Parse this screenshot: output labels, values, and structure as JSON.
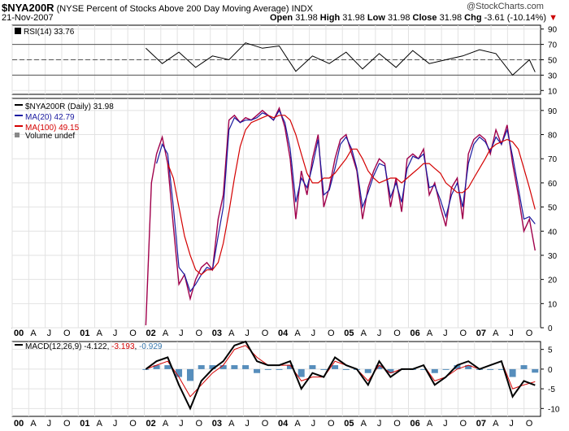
{
  "header": {
    "symbol": "$NYA200R",
    "description": "(NYSE Percent of Stocks Above 200 Day Moving Average)",
    "exchange": "INDX",
    "date": "21-Nov-2007",
    "open_label": "Open",
    "open": "31.98",
    "high_label": "High",
    "high": "31.98",
    "low_label": "Low",
    "low": "31.98",
    "close_label": "Close",
    "close": "31.98",
    "chg_label": "Chg",
    "chg": "-3.61 (-10.14%)",
    "chg_arrow": "▼",
    "logo": "@StockCharts.com"
  },
  "colors": {
    "price": "#a0004b",
    "ma20": "#1a1aa0",
    "ma100": "#d40000",
    "rsi": "#000000",
    "macd": "#000000",
    "signal": "#d40000",
    "hist": "#3a7ab0"
  },
  "legends": {
    "rsi": "RSI(14) 33.76",
    "price": "$NYA200R (Daily) 31.98",
    "ma20": "MA(20) 42.79",
    "ma100": "MA(100) 49.15",
    "volume": "Volume undef",
    "macd_label": "MACD(12,26,9)",
    "macd_val": "-4.122",
    "signal_val": "-3.193",
    "hist_val": "-0.929"
  },
  "x_axis_labels": [
    "00",
    "A",
    "J",
    "O",
    "01",
    "A",
    "J",
    "O",
    "02",
    "A",
    "J",
    "O",
    "03",
    "A",
    "J",
    "O",
    "04",
    "A",
    "J",
    "O",
    "05",
    "A",
    "J",
    "O",
    "06",
    "A",
    "J",
    "O",
    "07",
    "A",
    "J",
    "O"
  ],
  "chart_data": [
    {
      "type": "line",
      "name": "RSI",
      "yticks": [
        10,
        30,
        50,
        70,
        90
      ],
      "ylim": [
        5,
        95
      ],
      "reference_lines": [
        30,
        50,
        70
      ],
      "x": [
        "2002-01",
        "2002-04",
        "2002-07",
        "2002-10",
        "2003-01",
        "2003-04",
        "2003-07",
        "2003-10",
        "2004-01",
        "2004-04",
        "2004-07",
        "2004-10",
        "2005-01",
        "2005-04",
        "2005-07",
        "2005-10",
        "2006-01",
        "2006-04",
        "2006-07",
        "2006-10",
        "2007-01",
        "2007-04",
        "2007-07",
        "2007-10",
        "2007-11"
      ],
      "values": [
        65,
        45,
        60,
        40,
        55,
        50,
        72,
        65,
        68,
        35,
        55,
        45,
        60,
        38,
        58,
        40,
        62,
        45,
        50,
        55,
        63,
        58,
        30,
        50,
        34
      ]
    },
    {
      "type": "line",
      "name": "Price",
      "yticks": [
        0,
        10,
        20,
        30,
        40,
        50,
        60,
        70,
        80,
        90
      ],
      "ylim": [
        0,
        95
      ],
      "x": [
        "2002-01",
        "2002-02",
        "2002-03",
        "2002-04",
        "2002-05",
        "2002-06",
        "2002-07",
        "2002-08",
        "2002-09",
        "2002-10",
        "2002-11",
        "2002-12",
        "2003-01",
        "2003-02",
        "2003-03",
        "2003-04",
        "2003-05",
        "2003-06",
        "2003-07",
        "2003-08",
        "2003-09",
        "2003-10",
        "2003-11",
        "2003-12",
        "2004-01",
        "2004-02",
        "2004-03",
        "2004-04",
        "2004-05",
        "2004-06",
        "2004-07",
        "2004-08",
        "2004-09",
        "2004-10",
        "2004-11",
        "2004-12",
        "2005-01",
        "2005-02",
        "2005-03",
        "2005-04",
        "2005-05",
        "2005-06",
        "2005-07",
        "2005-08",
        "2005-09",
        "2005-10",
        "2005-11",
        "2005-12",
        "2006-01",
        "2006-02",
        "2006-03",
        "2006-04",
        "2006-05",
        "2006-06",
        "2006-07",
        "2006-08",
        "2006-09",
        "2006-10",
        "2006-11",
        "2006-12",
        "2007-01",
        "2007-02",
        "2007-03",
        "2007-04",
        "2007-05",
        "2007-06",
        "2007-07",
        "2007-08",
        "2007-09",
        "2007-10",
        "2007-11"
      ],
      "series": [
        {
          "name": "$NYA200R",
          "values": [
            1,
            60,
            72,
            79,
            68,
            42,
            18,
            22,
            12,
            20,
            25,
            27,
            24,
            45,
            55,
            86,
            88,
            85,
            87,
            86,
            88,
            90,
            88,
            86,
            91,
            83,
            70,
            45,
            65,
            55,
            70,
            80,
            50,
            58,
            70,
            78,
            80,
            72,
            65,
            45,
            58,
            65,
            70,
            68,
            50,
            62,
            48,
            70,
            72,
            70,
            74,
            55,
            60,
            50,
            42,
            58,
            62,
            45,
            72,
            78,
            80,
            78,
            72,
            82,
            76,
            84,
            68,
            55,
            40,
            45,
            32
          ]
        },
        {
          "name": "MA(20)",
          "values": [
            null,
            null,
            68,
            76,
            72,
            50,
            25,
            22,
            15,
            18,
            22,
            25,
            24,
            38,
            50,
            82,
            87,
            85,
            86,
            86,
            87,
            89,
            88,
            86,
            90,
            85,
            74,
            52,
            62,
            58,
            67,
            78,
            55,
            57,
            66,
            76,
            79,
            74,
            66,
            50,
            56,
            63,
            68,
            67,
            54,
            60,
            52,
            66,
            71,
            70,
            72,
            58,
            59,
            53,
            46,
            55,
            60,
            50,
            68,
            76,
            79,
            77,
            73,
            79,
            76,
            82,
            71,
            58,
            45,
            46,
            43
          ]
        },
        {
          "name": "MA(100)",
          "values": [
            null,
            null,
            null,
            null,
            68,
            62,
            50,
            38,
            30,
            24,
            22,
            24,
            24,
            27,
            35,
            48,
            62,
            75,
            82,
            85,
            86,
            87,
            88,
            87,
            88,
            88,
            86,
            80,
            72,
            64,
            60,
            60,
            62,
            62,
            64,
            67,
            70,
            74,
            74,
            70,
            65,
            62,
            60,
            61,
            62,
            62,
            60,
            62,
            64,
            66,
            68,
            68,
            66,
            64,
            60,
            58,
            56,
            56,
            58,
            62,
            66,
            70,
            74,
            76,
            77,
            78,
            77,
            74,
            66,
            58,
            49
          ]
        }
      ]
    },
    {
      "type": "line",
      "name": "MACD",
      "yticks": [
        5,
        0,
        -5,
        -10
      ],
      "ylim": [
        -12,
        7
      ],
      "x": [
        "2002-01",
        "2002-03",
        "2002-05",
        "2002-07",
        "2002-09",
        "2002-11",
        "2003-01",
        "2003-03",
        "2003-05",
        "2003-07",
        "2003-09",
        "2003-11",
        "2004-01",
        "2004-03",
        "2004-05",
        "2004-07",
        "2004-09",
        "2004-11",
        "2005-01",
        "2005-03",
        "2005-05",
        "2005-07",
        "2005-09",
        "2005-11",
        "2006-01",
        "2006-03",
        "2006-05",
        "2006-07",
        "2006-09",
        "2006-11",
        "2007-01",
        "2007-03",
        "2007-05",
        "2007-07",
        "2007-09",
        "2007-11"
      ],
      "series": [
        {
          "name": "MACD",
          "values": [
            0,
            2,
            3,
            -4,
            -10,
            -3,
            0,
            2,
            6,
            7,
            2,
            1,
            1,
            2,
            -5,
            -1,
            -2,
            3,
            1,
            0,
            -4,
            2,
            -2,
            0,
            0,
            1,
            -4,
            -2,
            1,
            2,
            0,
            1,
            2,
            -7,
            -3,
            -4.1
          ]
        },
        {
          "name": "Signal",
          "values": [
            0,
            1,
            2,
            -2,
            -7,
            -4,
            -1,
            1,
            5,
            6,
            3,
            1,
            1,
            1,
            -3,
            -2,
            -2,
            2,
            1,
            0,
            -3,
            1,
            -1,
            0,
            0,
            1,
            -3,
            -2,
            0,
            1,
            0,
            1,
            2,
            -5,
            -4,
            -3.2
          ]
        },
        {
          "name": "Histogram",
          "values": [
            0,
            1,
            1,
            -2,
            -3,
            1,
            1,
            1,
            1,
            1,
            -1,
            0,
            0,
            1,
            -2,
            1,
            0,
            1,
            0,
            0,
            -1,
            1,
            -1,
            0,
            0,
            0,
            -1,
            0,
            1,
            1,
            0,
            0,
            0,
            -2,
            1,
            -0.9
          ]
        }
      ]
    }
  ]
}
